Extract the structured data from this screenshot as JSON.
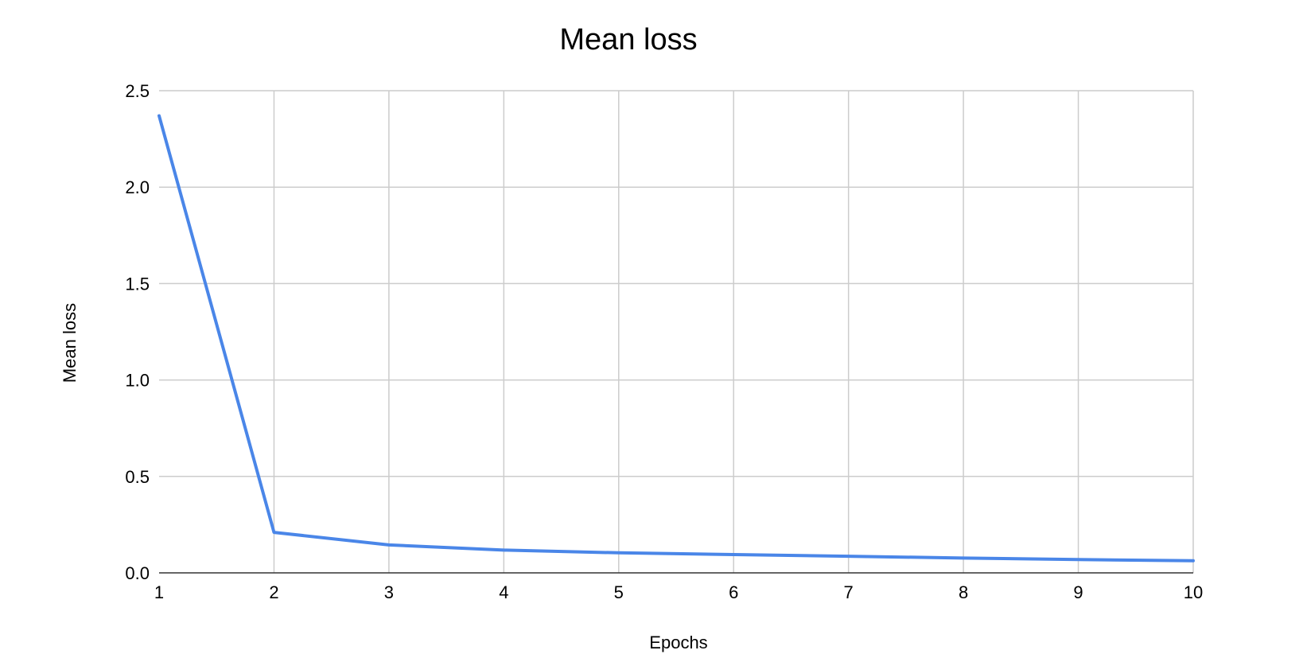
{
  "chart_data": {
    "type": "line",
    "title": "Mean loss",
    "xlabel": "Epochs",
    "ylabel": "Mean loss",
    "x": [
      1,
      2,
      3,
      4,
      5,
      6,
      7,
      8,
      9,
      10
    ],
    "xlim": [
      1,
      10
    ],
    "ylim": [
      0,
      2.5
    ],
    "yticks": [
      "0.0",
      "0.5",
      "1.0",
      "1.5",
      "2.0",
      "2.5"
    ],
    "xticks": [
      "1",
      "2",
      "3",
      "4",
      "5",
      "6",
      "7",
      "8",
      "9",
      "10"
    ],
    "grid": true,
    "legend": "none",
    "series": [
      {
        "values": [
          2.37,
          0.21,
          0.145,
          0.118,
          0.104,
          0.095,
          0.086,
          0.077,
          0.069,
          0.063
        ],
        "color": "#4A86E8"
      }
    ]
  }
}
